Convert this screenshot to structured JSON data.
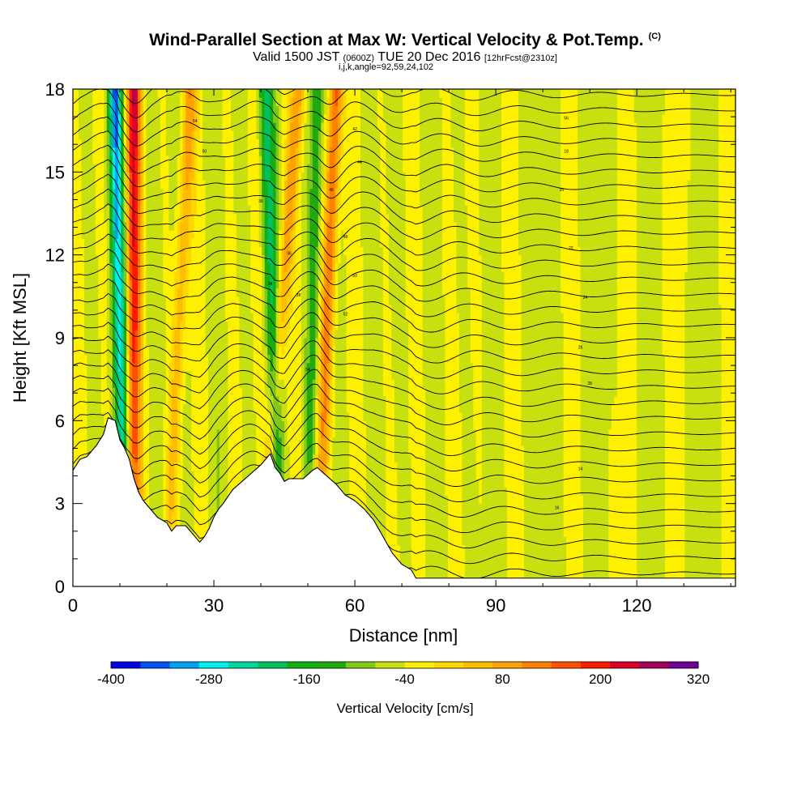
{
  "header": {
    "title": "Wind-Parallel Section at Max W: Vertical Velocity & Pot.Temp.",
    "copyright": "(C)",
    "valid_prefix": "Valid 1500 JST",
    "utc": "(0600Z)",
    "valid_date": "TUE 20 Dec 2016",
    "forecast": "[12hrFcst@2310z]",
    "params": "i,j,k,angle=92,59,24,102"
  },
  "chart_data": {
    "type": "heatmap",
    "xlabel": "Distance [nm]",
    "ylabel": "Height [Kft MSL]",
    "xlim": [
      0,
      141
    ],
    "ylim": [
      0,
      18
    ],
    "x_ticks": [
      0,
      30,
      60,
      90,
      120
    ],
    "y_ticks": [
      0,
      3,
      6,
      9,
      12,
      15,
      18
    ],
    "x_tick_labels": [
      "0",
      "30",
      "60",
      "90",
      "120"
    ],
    "y_tick_labels": [
      "0",
      "3",
      "6",
      "9",
      "12",
      "15",
      "18"
    ],
    "colorbar": {
      "title": "Vertical Velocity [cm/s]",
      "min": -400,
      "max": 320,
      "step": 40,
      "tick_values": [
        -400,
        -280,
        -160,
        -40,
        80,
        200,
        320
      ],
      "tick_labels": [
        "-400",
        "-280",
        "-160",
        "-40",
        "80",
        "200",
        "320"
      ],
      "colors": [
        "#0000e6",
        "#0050f0",
        "#00a0f5",
        "#00f0f0",
        "#00d5a0",
        "#00c060",
        "#10b010",
        "#20aa10",
        "#80c818",
        "#c8e010",
        "#fff000",
        "#ffd700",
        "#ffbd00",
        "#ffa300",
        "#ff7f00",
        "#ff5000",
        "#ff1a00",
        "#d9002a",
        "#a0005a",
        "#6e0096"
      ]
    },
    "terrain_kft": [
      [
        0,
        4.2
      ],
      [
        1.5,
        4.6
      ],
      [
        3,
        4.7
      ],
      [
        5,
        5.1
      ],
      [
        6.5,
        5.5
      ],
      [
        7.5,
        6.1
      ],
      [
        9,
        6.0
      ],
      [
        10,
        5.3
      ],
      [
        11,
        5.0
      ],
      [
        12,
        4.6
      ],
      [
        13,
        3.9
      ],
      [
        14,
        3.4
      ],
      [
        15,
        3.1
      ],
      [
        16.5,
        2.8
      ],
      [
        18,
        2.5
      ],
      [
        20,
        2.3
      ],
      [
        21,
        2.0
      ],
      [
        22,
        2.2
      ],
      [
        24,
        2.2
      ],
      [
        26,
        1.8
      ],
      [
        27,
        1.6
      ],
      [
        28,
        1.8
      ],
      [
        29,
        2.1
      ],
      [
        30,
        2.5
      ],
      [
        31,
        2.8
      ],
      [
        32,
        3.0
      ],
      [
        34,
        3.5
      ],
      [
        36,
        3.8
      ],
      [
        38,
        4.1
      ],
      [
        40,
        4.4
      ],
      [
        42,
        4.8
      ],
      [
        43,
        4.3
      ],
      [
        44,
        4.1
      ],
      [
        45,
        3.8
      ],
      [
        46,
        3.9
      ],
      [
        47,
        3.9
      ],
      [
        49,
        3.9
      ],
      [
        51,
        4.2
      ],
      [
        52,
        4.3
      ],
      [
        54,
        4.0
      ],
      [
        56,
        3.7
      ],
      [
        58,
        3.3
      ],
      [
        60,
        3.1
      ],
      [
        62,
        2.8
      ],
      [
        64,
        2.4
      ],
      [
        66,
        1.8
      ],
      [
        68,
        1.2
      ],
      [
        70,
        0.8
      ],
      [
        72,
        0.6
      ],
      [
        73,
        0.3
      ],
      [
        141,
        0.3
      ]
    ],
    "theta_contour_labels": [
      "30",
      "54",
      "50",
      "30",
      "34",
      "36",
      "38",
      "42",
      "44",
      "46",
      "48",
      "50",
      "52",
      "54",
      "56",
      "18",
      "20",
      "22",
      "24",
      "26",
      "28",
      "14",
      "16"
    ],
    "updraft_bands": [
      {
        "x_top": 13,
        "x_bottom": 13,
        "w_max": 300
      },
      {
        "x_top": 25,
        "x_bottom": 20,
        "w_max": 140
      },
      {
        "x_top": 48,
        "x_bottom": 40,
        "w_max": 150
      },
      {
        "x_top": 56,
        "x_bottom": 52,
        "w_max": 240
      }
    ],
    "downdraft_bands": [
      {
        "x_top": 9,
        "x_bottom": 11,
        "w_min": -300
      },
      {
        "x_top": 41,
        "x_bottom": 44,
        "w_min": -180
      },
      {
        "x_top": 52,
        "x_bottom": 50,
        "w_min": -120
      }
    ]
  }
}
